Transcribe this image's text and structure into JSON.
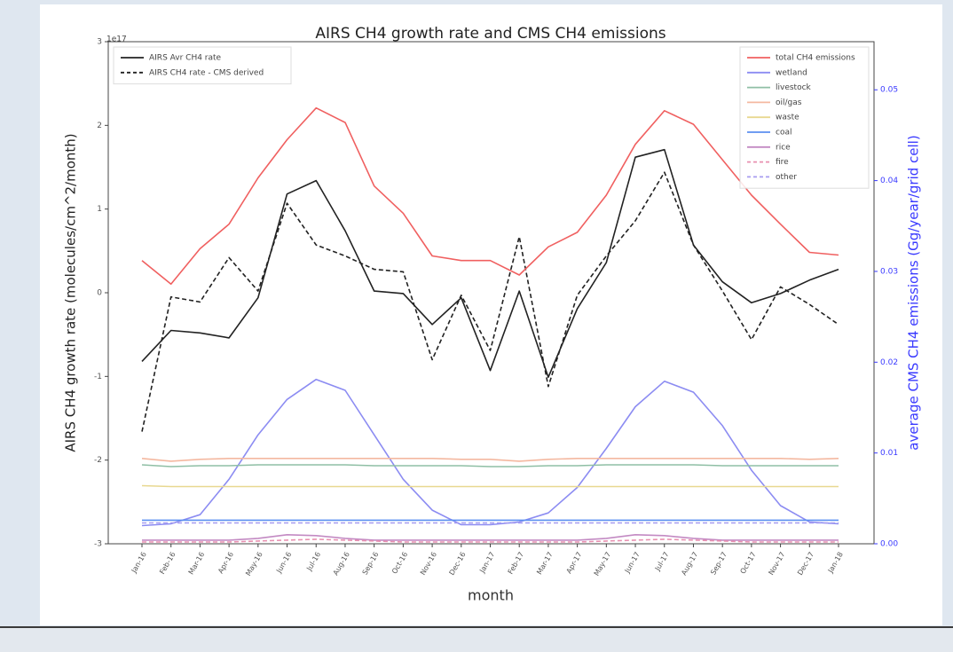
{
  "chart_data": {
    "type": "line",
    "title": "AIRS CH4 growth rate and CMS CH4 emissions",
    "x_label": "month",
    "y_label": "AIRS CH4 growth rate (molecules/cm^2/month)",
    "y2_label": "average CMS CH4 emissions (Gg/year/grid cell)",
    "y_offset_label": "1e17",
    "categories": [
      "Jan-16",
      "Feb-16",
      "Mar-16",
      "Apr-16",
      "May-16",
      "Jun-16",
      "Jul-16",
      "Aug-16",
      "Sep-16",
      "Oct-16",
      "Nov-16",
      "Dec-16",
      "Jan-17",
      "Feb-17",
      "Mar-17",
      "Apr-17",
      "May-17",
      "Jun-17",
      "Jul-17",
      "Aug-17",
      "Sep-17",
      "Oct-17",
      "Nov-17",
      "Dec-17",
      "Jan-18"
    ],
    "ylim": [
      -3,
      3
    ],
    "yticks": [
      -3,
      -2,
      -1,
      0,
      1,
      2,
      3
    ],
    "y2lim": [
      0,
      0.0553
    ],
    "y2ticks": [
      {
        "value": 0,
        "label": "0.00"
      },
      {
        "value": 0.01,
        "label": "0.01"
      },
      {
        "value": 0.02,
        "label": "0.02"
      },
      {
        "value": 0.03,
        "label": "0.03"
      },
      {
        "value": 0.04,
        "label": "0.04"
      },
      {
        "value": 0.05,
        "label": "0.05"
      }
    ],
    "y_legend": "upper left",
    "y2_legend": "upper right",
    "series": [
      {
        "name": "AIRS Avr CH4 rate",
        "color": "#222222",
        "linestyle": "solid",
        "axis": "y",
        "values": [
          -0.82,
          -0.45,
          -0.48,
          -0.54,
          -0.06,
          1.18,
          1.34,
          0.74,
          0.02,
          -0.01,
          -0.38,
          -0.06,
          -0.93,
          0.02,
          -1.01,
          -0.19,
          0.36,
          1.62,
          1.71,
          0.57,
          0.13,
          -0.12,
          -0.01,
          0.15,
          0.28
        ]
      },
      {
        "name": "AIRS CH4 rate - CMS derived",
        "color": "#222222",
        "linestyle": "dashed",
        "axis": "y",
        "values": [
          -1.66,
          -0.05,
          -0.11,
          0.42,
          0.02,
          1.07,
          0.57,
          0.44,
          0.28,
          0.25,
          -0.8,
          -0.03,
          -0.69,
          0.67,
          -1.12,
          -0.03,
          0.44,
          0.86,
          1.44,
          0.57,
          0.02,
          -0.56,
          0.07,
          -0.14,
          -0.38
        ]
      },
      {
        "name": "total CH4 emissions",
        "color": "#f06060",
        "linestyle": "solid",
        "axis": "y2",
        "values": [
          0.0312,
          0.0286,
          0.0325,
          0.0352,
          0.0403,
          0.0445,
          0.048,
          0.0464,
          0.0394,
          0.0364,
          0.0317,
          0.0312,
          0.0312,
          0.0296,
          0.0327,
          0.0343,
          0.0384,
          0.044,
          0.0477,
          0.0462,
          0.0423,
          0.0384,
          0.0352,
          0.0321,
          0.0318
        ]
      },
      {
        "name": "wetland",
        "color": "#8c8cf2",
        "linestyle": "solid",
        "axis": "y2",
        "values": [
          0.002,
          0.0022,
          0.0032,
          0.0071,
          0.012,
          0.0159,
          0.0181,
          0.0169,
          0.012,
          0.0071,
          0.0037,
          0.0021,
          0.0021,
          0.0024,
          0.0034,
          0.0062,
          0.0105,
          0.0151,
          0.0179,
          0.0167,
          0.013,
          0.0081,
          0.0042,
          0.0024,
          0.0022
        ]
      },
      {
        "name": "livestock",
        "color": "#8fbfa5",
        "linestyle": "solid",
        "axis": "y2",
        "values": [
          0.0087,
          0.0085,
          0.0086,
          0.0086,
          0.0087,
          0.0087,
          0.0087,
          0.0087,
          0.0086,
          0.0086,
          0.0086,
          0.0086,
          0.0085,
          0.0085,
          0.0086,
          0.0086,
          0.0087,
          0.0087,
          0.0087,
          0.0087,
          0.0086,
          0.0086,
          0.0086,
          0.0086,
          0.0086
        ]
      },
      {
        "name": "oil/gas",
        "color": "#f4b8a0",
        "linestyle": "solid",
        "axis": "y2",
        "values": [
          0.0094,
          0.0091,
          0.0093,
          0.0094,
          0.0094,
          0.0094,
          0.0094,
          0.0094,
          0.0094,
          0.0094,
          0.0094,
          0.0093,
          0.0093,
          0.0091,
          0.0093,
          0.0094,
          0.0094,
          0.0094,
          0.0094,
          0.0094,
          0.0094,
          0.0094,
          0.0094,
          0.0093,
          0.0094
        ]
      },
      {
        "name": "waste",
        "color": "#e8d890",
        "linestyle": "solid",
        "axis": "y2",
        "values": [
          0.0064,
          0.0063,
          0.0063,
          0.0063,
          0.0063,
          0.0063,
          0.0063,
          0.0063,
          0.0063,
          0.0063,
          0.0063,
          0.0063,
          0.0063,
          0.0063,
          0.0063,
          0.0063,
          0.0063,
          0.0063,
          0.0063,
          0.0063,
          0.0063,
          0.0063,
          0.0063,
          0.0063,
          0.0063
        ]
      },
      {
        "name": "coal",
        "color": "#5b8ff0",
        "linestyle": "solid",
        "axis": "y2",
        "values": [
          0.0026,
          0.0026,
          0.0026,
          0.0026,
          0.0026,
          0.0026,
          0.0026,
          0.0026,
          0.0026,
          0.0026,
          0.0026,
          0.0026,
          0.0026,
          0.0026,
          0.0026,
          0.0026,
          0.0026,
          0.0026,
          0.0026,
          0.0026,
          0.0026,
          0.0026,
          0.0026,
          0.0026,
          0.0026
        ]
      },
      {
        "name": "rice",
        "color": "#c38ac3",
        "linestyle": "solid",
        "axis": "y2",
        "values": [
          0.0004,
          0.0004,
          0.0004,
          0.0004,
          0.0006,
          0.001,
          0.0009,
          0.0006,
          0.0004,
          0.0004,
          0.0004,
          0.0004,
          0.0004,
          0.0004,
          0.0004,
          0.0004,
          0.0006,
          0.001,
          0.0009,
          0.0006,
          0.0004,
          0.0004,
          0.0004,
          0.0004,
          0.0004
        ]
      },
      {
        "name": "fire",
        "color": "#e890b0",
        "linestyle": "dashed",
        "axis": "y2",
        "values": [
          0.0002,
          0.0002,
          0.0002,
          0.0002,
          0.0003,
          0.0004,
          0.0005,
          0.0004,
          0.0003,
          0.0002,
          0.0002,
          0.0002,
          0.0002,
          0.0002,
          0.0002,
          0.0002,
          0.0003,
          0.0004,
          0.0005,
          0.0004,
          0.0003,
          0.0002,
          0.0002,
          0.0002,
          0.0002
        ]
      },
      {
        "name": "other",
        "color": "#a89cf0",
        "linestyle": "dashed",
        "axis": "y2",
        "values": [
          0.0023,
          0.0023,
          0.0023,
          0.0023,
          0.0023,
          0.0023,
          0.0023,
          0.0023,
          0.0023,
          0.0023,
          0.0023,
          0.0023,
          0.0023,
          0.0023,
          0.0023,
          0.0023,
          0.0023,
          0.0023,
          0.0023,
          0.0023,
          0.0023,
          0.0023,
          0.0023,
          0.0023,
          0.0023
        ]
      }
    ]
  }
}
